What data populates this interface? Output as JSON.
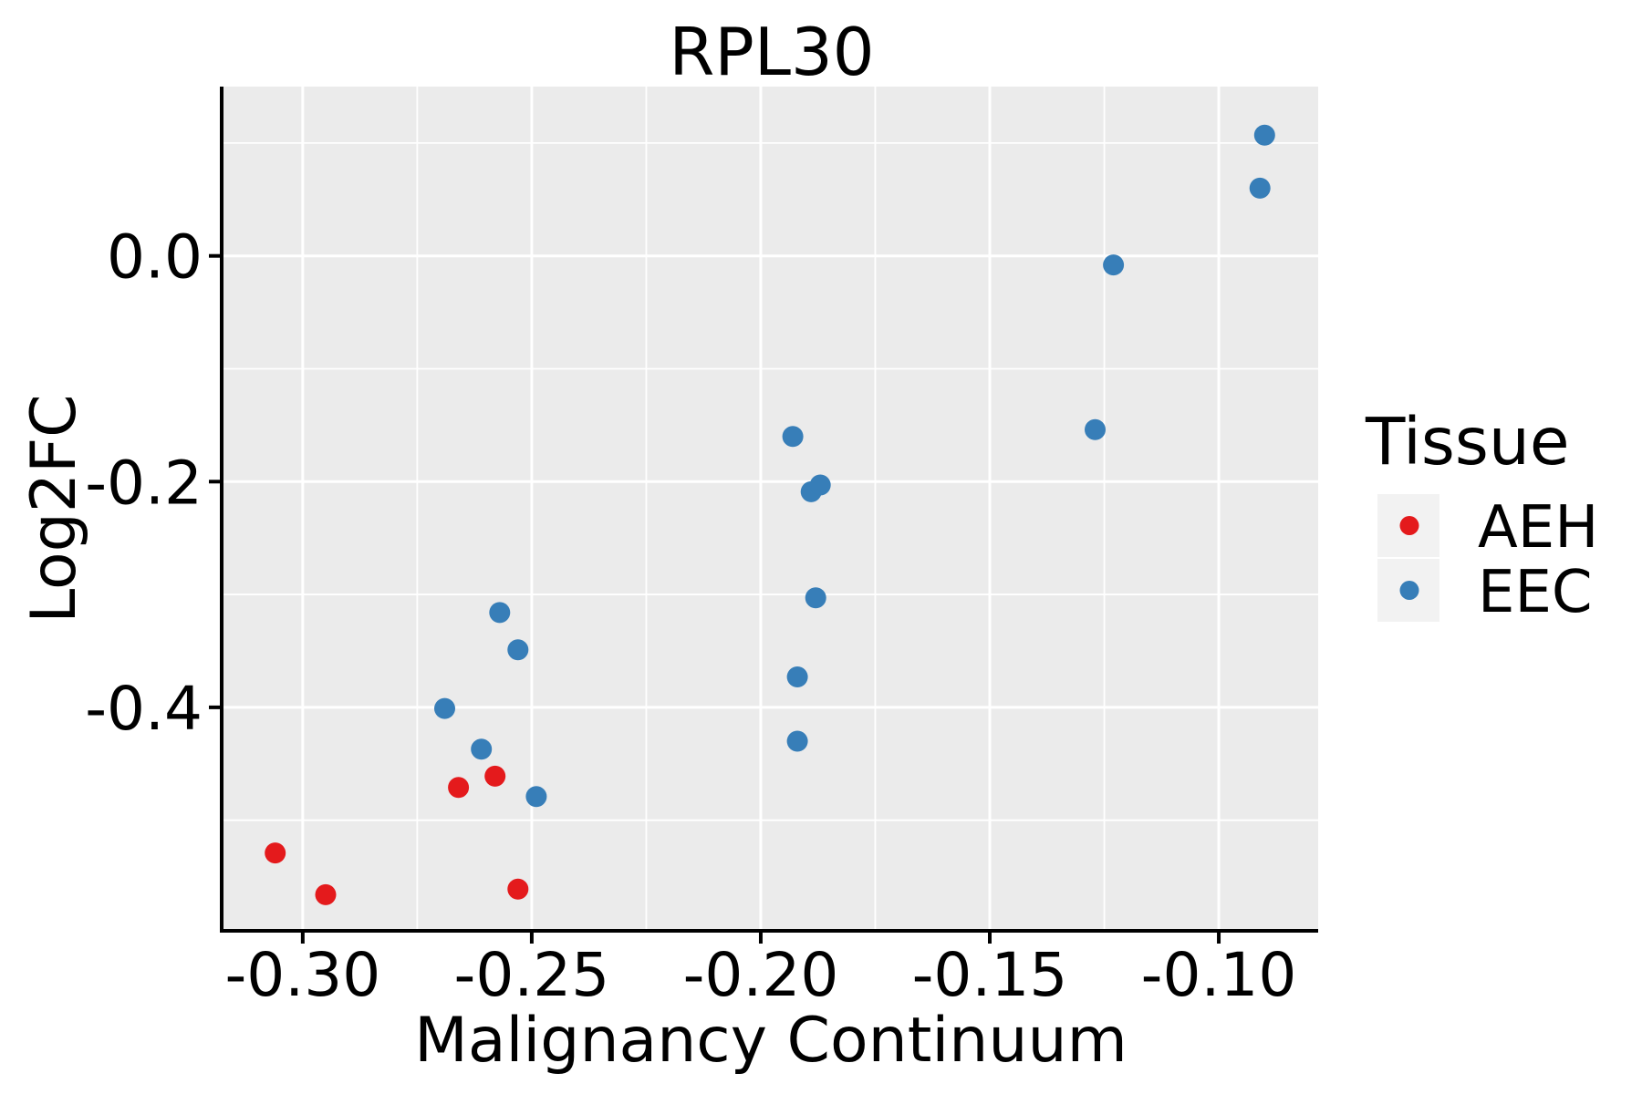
{
  "chart_data": {
    "type": "scatter",
    "title": "RPL30",
    "xlabel": "Malignancy Continuum",
    "ylabel": "Log2FC",
    "x_range": [
      -0.3173,
      -0.0783
    ],
    "y_range": [
      -0.598,
      0.15
    ],
    "x_major_ticks": {
      "values": [
        -0.3,
        -0.25,
        -0.2,
        -0.15,
        -0.1
      ],
      "labels": [
        "-0.30",
        "-0.25",
        "-0.20",
        "-0.15",
        "-0.10"
      ]
    },
    "x_minor_ticks": [
      -0.275,
      -0.225,
      -0.175,
      -0.125
    ],
    "y_major_ticks": {
      "values": [
        0.0,
        -0.2,
        -0.4
      ],
      "labels": [
        "0.0",
        "-0.2",
        "-0.4"
      ]
    },
    "y_minor_ticks": [
      0.1,
      -0.1,
      -0.3,
      -0.5
    ],
    "grid": "major and minor white gridlines on gray panel",
    "legend": {
      "title": "Tissue",
      "position": "right",
      "entries": [
        {
          "label": "AEH",
          "color": "#E41A1C"
        },
        {
          "label": "EEC",
          "color": "#377EB8"
        }
      ]
    },
    "series": [
      {
        "name": "AEH",
        "color": "#E41A1C",
        "points": [
          [
            -0.306,
            -0.529
          ],
          [
            -0.295,
            -0.566
          ],
          [
            -0.266,
            -0.471
          ],
          [
            -0.258,
            -0.461
          ],
          [
            -0.253,
            -0.561
          ]
        ]
      },
      {
        "name": "EEC",
        "color": "#377EB8",
        "points": [
          [
            -0.269,
            -0.401
          ],
          [
            -0.261,
            -0.437
          ],
          [
            -0.257,
            -0.316
          ],
          [
            -0.253,
            -0.349
          ],
          [
            -0.249,
            -0.479
          ],
          [
            -0.193,
            -0.16
          ],
          [
            -0.192,
            -0.373
          ],
          [
            -0.192,
            -0.43
          ],
          [
            -0.189,
            -0.209
          ],
          [
            -0.188,
            -0.303
          ],
          [
            -0.187,
            -0.203
          ],
          [
            -0.127,
            -0.154
          ],
          [
            -0.123,
            -0.008
          ],
          [
            -0.091,
            0.06
          ],
          [
            -0.09,
            0.107
          ]
        ]
      }
    ]
  },
  "style": {
    "panel_background": "#EBEBEB",
    "gridline_color": "#FFFFFF",
    "legend_key_background": "#F2F2F2",
    "axis_line_color": "#000000",
    "text_color": "#000000",
    "figure_background": "#FFFFFF"
  }
}
